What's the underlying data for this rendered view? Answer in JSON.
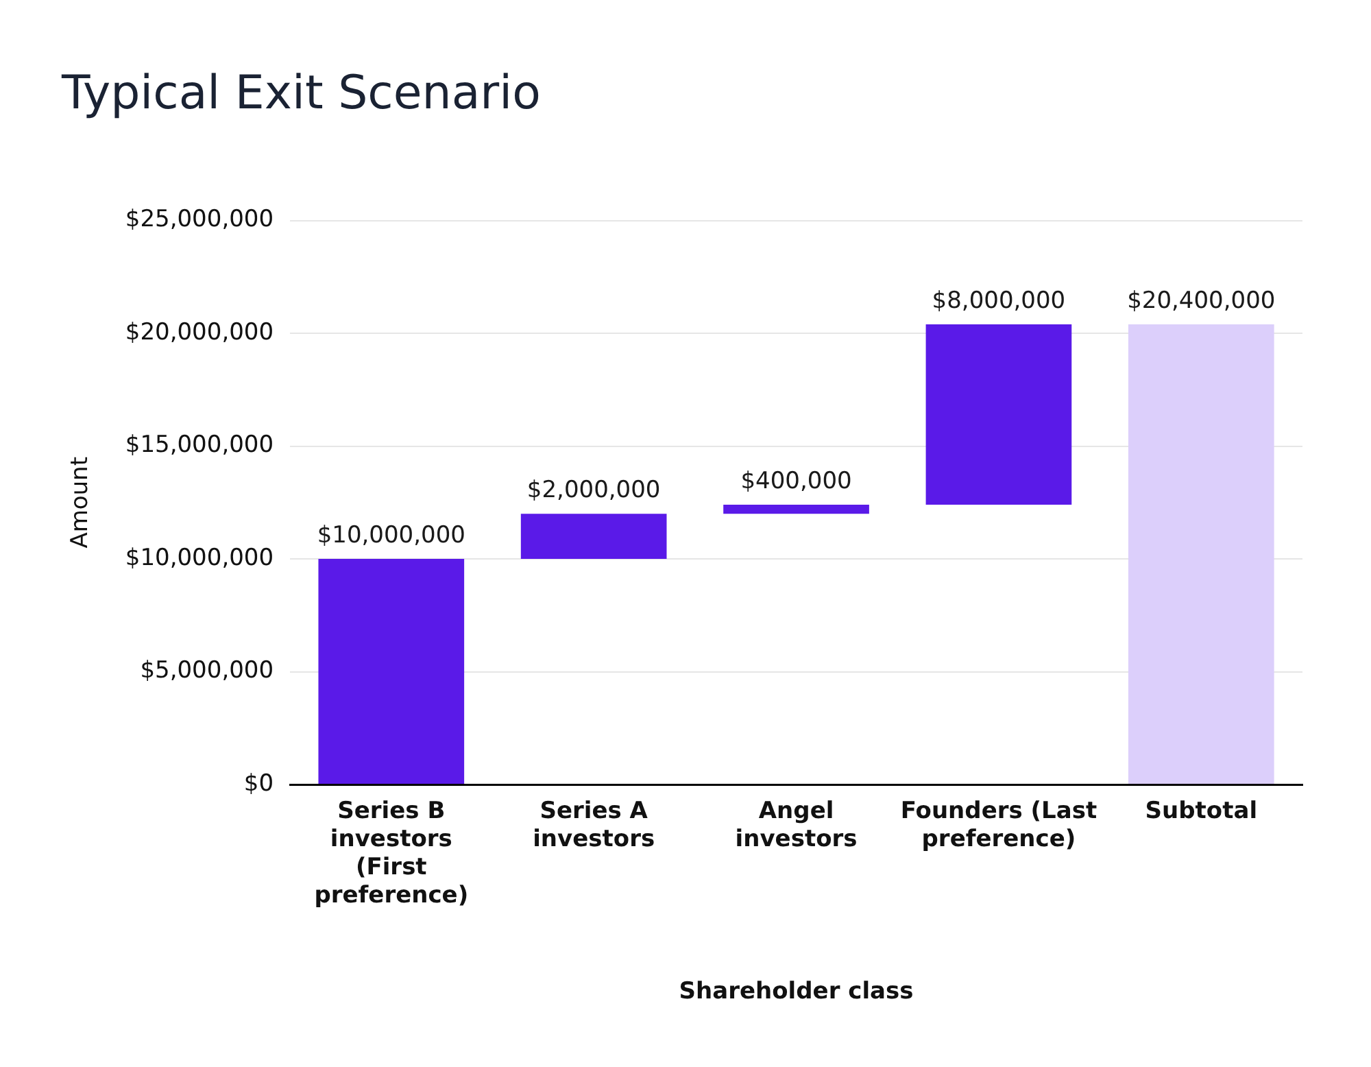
{
  "chart_data": {
    "type": "bar",
    "title": "Typical Exit Scenario",
    "xlabel": "Shareholder class",
    "ylabel": "Amount",
    "categories": [
      "Series B investors (First preference)",
      "Series A investors",
      "Angel investors",
      "Founders (Last preference)",
      "Subtotal"
    ],
    "values": [
      10000000,
      2000000,
      400000,
      8000000,
      20400000
    ],
    "base": [
      0,
      10000000,
      12000000,
      12400000,
      0
    ],
    "colors": [
      "#5a1ae8",
      "#5a1ae8",
      "#5a1ae8",
      "#5a1ae8",
      "#dccffb"
    ],
    "value_labels": [
      "$10,000,000",
      "$2,000,000",
      "$400,000",
      "$8,000,000",
      "$20,400,000"
    ],
    "ylim": [
      0,
      25000000
    ],
    "yticks": [
      {
        "value": 0,
        "label": "$0"
      },
      {
        "value": 5000000,
        "label": "$5,000,000"
      },
      {
        "value": 10000000,
        "label": "$10,000,000"
      },
      {
        "value": 15000000,
        "label": "$15,000,000"
      },
      {
        "value": 20000000,
        "label": "$20,000,000"
      },
      {
        "value": 25000000,
        "label": "$25,000,000"
      }
    ],
    "grid": "y",
    "legend": false
  }
}
